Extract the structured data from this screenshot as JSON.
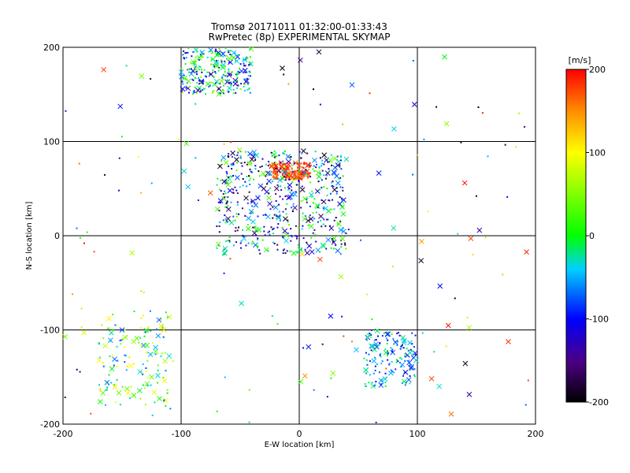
{
  "chart_data": {
    "type": "scatter",
    "title": [
      "Tromsø 20171011 01:32:00-01:33:43",
      "RwPretec (8p) EXPERIMENTAL SKYMAP"
    ],
    "xlabel": "E-W location [km]",
    "ylabel": "N-S location [km]",
    "xlim": [
      -200,
      200
    ],
    "ylim": [
      -200,
      200
    ],
    "xticks": [
      "-200",
      "-100",
      "0",
      "100",
      "200"
    ],
    "yticks": [
      "-200",
      "-100",
      "0",
      "100",
      "200"
    ],
    "grid": true,
    "colorbar": {
      "label": "[m/s]",
      "range": [
        -200,
        200
      ],
      "ticks": [
        "-200",
        "-100",
        "0",
        "100",
        "200"
      ],
      "colormap": "black-purple-blue-cyan-green-yellow-red"
    },
    "markers": {
      "small": "dot/triangle",
      "large": "x"
    },
    "clusters": [
      {
        "name": "north-west arc",
        "x": [
          -100,
          -40
        ],
        "y": [
          150,
          200
        ],
        "v": [
          -150,
          60
        ]
      },
      {
        "name": "red patch near origin",
        "x": [
          -25,
          10
        ],
        "y": [
          60,
          78
        ],
        "v": [
          150,
          200
        ]
      },
      {
        "name": "central diagonal band",
        "x": [
          -70,
          40
        ],
        "y": [
          -20,
          90
        ],
        "v": [
          -200,
          40
        ]
      },
      {
        "name": "south-west cluster",
        "x": [
          -170,
          -110
        ],
        "y": [
          -180,
          -80
        ],
        "v": [
          -80,
          120
        ]
      },
      {
        "name": "south-east band",
        "x": [
          55,
          100
        ],
        "y": [
          -160,
          -100
        ],
        "v": [
          -120,
          0
        ]
      }
    ],
    "highlighted_points": [
      {
        "x": -10,
        "y": 72,
        "v": 190
      },
      {
        "x": -20,
        "y": 68,
        "v": 180
      },
      {
        "x": 0,
        "y": 75,
        "v": 170
      },
      {
        "x": -90,
        "y": 175,
        "v": -120
      },
      {
        "x": -70,
        "y": 180,
        "v": 20
      },
      {
        "x": -30,
        "y": 50,
        "v": -160
      },
      {
        "x": -45,
        "y": 40,
        "v": -190
      },
      {
        "x": -20,
        "y": 30,
        "v": -60
      },
      {
        "x": 10,
        "y": 10,
        "v": 10
      },
      {
        "x": 20,
        "y": -10,
        "v": -20
      },
      {
        "x": -150,
        "y": -100,
        "v": -80
      },
      {
        "x": -125,
        "y": -150,
        "v": 40
      },
      {
        "x": 65,
        "y": -115,
        "v": -60
      },
      {
        "x": 90,
        "y": -145,
        "v": -120
      }
    ]
  }
}
